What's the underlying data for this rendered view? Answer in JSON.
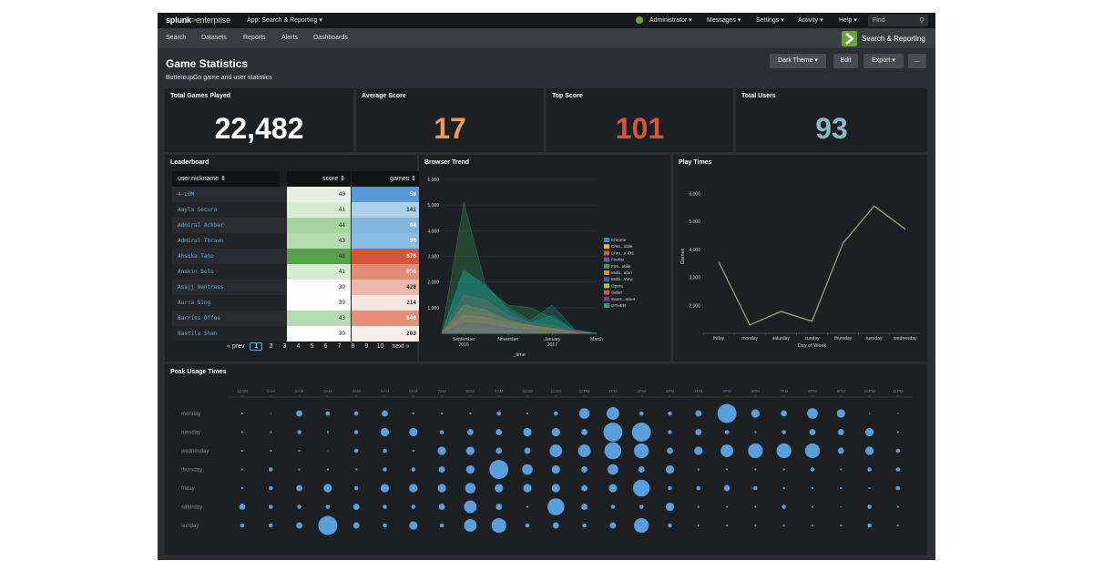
{
  "topbar": {
    "logo_main": "splunk",
    "logo_sep": ">",
    "logo_sub": "enterprise",
    "app_menu": "App: Search & Reporting ▾",
    "menus": [
      "Administrator ▾",
      "Messages ▾",
      "Settings ▾",
      "Activity ▾",
      "Help ▾"
    ],
    "find_placeholder": "Find",
    "search_icon": "magnifier-icon",
    "status_color": "#65a637"
  },
  "navbar": {
    "items": [
      "Search",
      "Datasets",
      "Reports",
      "Alerts",
      "Dashboards"
    ],
    "app_title": "Search & Reporting",
    "app_icon": "chevron-right-icon"
  },
  "dashboard": {
    "title": "Game Statistics",
    "subtitle": "ButtercupGo game and user statistics",
    "buttons": {
      "theme": "Dark Theme ▾",
      "edit": "Edit",
      "export": "Export ▾",
      "more": "..."
    }
  },
  "kpis": [
    {
      "title": "Total Games Played",
      "value": "22,482",
      "color": "#ffffff"
    },
    {
      "title": "Average Score",
      "value": "17",
      "color": "#ec9960"
    },
    {
      "title": "Top Score",
      "value": "101",
      "color": "#d6563c"
    },
    {
      "title": "Total Users",
      "value": "93",
      "color": "#8ab8c8"
    }
  ],
  "leaderboard": {
    "title": "Leaderboard",
    "columns": [
      "user.nickname ⇕",
      "score ⇕",
      "games ⇕"
    ],
    "rows": [
      {
        "name": "4-LOM",
        "score": "40",
        "games": "50",
        "score_bg": "#e6f1e3",
        "games_bg": "#5a96d3"
      },
      {
        "name": "Aayla Secura",
        "score": "41",
        "games": "141",
        "score_bg": "#d6ebd2",
        "games_bg": "#aed0ec"
      },
      {
        "name": "Admiral Ackbar",
        "score": "44",
        "games": "84",
        "score_bg": "#a6d3a0",
        "games_bg": "#82b6e1"
      },
      {
        "name": "Admiral Thrawn",
        "score": "43",
        "games": "90",
        "score_bg": "#b6dbb0",
        "games_bg": "#8abbe3"
      },
      {
        "name": "Ahsoka Tano",
        "score": "48",
        "games": "878",
        "score_bg": "#55a14e",
        "games_bg": "#d6563c"
      },
      {
        "name": "Anakin Solo",
        "score": "41",
        "games": "656",
        "score_bg": "#d6ebd2",
        "games_bg": "#e08d78"
      },
      {
        "name": "Asajj Ventress",
        "score": "39",
        "games": "420",
        "score_bg": "#ffffff",
        "games_bg": "#ebb8aa"
      },
      {
        "name": "Aurra Sing",
        "score": "39",
        "games": "214",
        "score_bg": "#ffffff",
        "games_bg": "#f8e8e4"
      },
      {
        "name": "Barriss Offee",
        "score": "43",
        "games": "640",
        "score_bg": "#b6dbb0",
        "games_bg": "#e2907b"
      },
      {
        "name": "Bastila Shan",
        "score": "39",
        "games": "203",
        "score_bg": "#ffffff",
        "games_bg": "#faeeea"
      }
    ],
    "pager": {
      "prev": "« prev",
      "pages": [
        "1",
        "2",
        "3",
        "4",
        "5",
        "6",
        "7",
        "8",
        "9",
        "10"
      ],
      "current": "1",
      "next": "next »"
    }
  },
  "browser_trend": {
    "title": "Browser Trend",
    "chart_data": {
      "type": "area",
      "xlabel": "_time",
      "ylabel": "",
      "ylim": [
        0,
        6000
      ],
      "yticks": [
        "6,000",
        "5,000",
        "4,000",
        "3,000",
        "2,000",
        "1,000"
      ],
      "xticks": [
        {
          "label": "September\n2016",
          "x": 1
        },
        {
          "label": "November",
          "x": 3
        },
        {
          "label": "January\n2017",
          "x": 5
        },
        {
          "label": "March",
          "x": 7
        }
      ],
      "x": [
        0,
        1,
        2,
        3,
        4,
        5,
        6,
        7
      ],
      "series": [
        {
          "name": "Chrome",
          "color": "#1e93c6",
          "values": [
            0,
            2400,
            1900,
            900,
            400,
            700,
            100,
            0
          ]
        },
        {
          "name": "Chro...obile",
          "color": "#f2b827",
          "values": [
            0,
            1100,
            900,
            500,
            300,
            200,
            50,
            0
          ]
        },
        {
          "name": "Chro...e iOS",
          "color": "#d6563c",
          "values": [
            0,
            900,
            800,
            450,
            250,
            200,
            50,
            0
          ]
        },
        {
          "name": "Firefox",
          "color": "#6a5c9e",
          "values": [
            0,
            600,
            500,
            300,
            200,
            100,
            30,
            0
          ]
        },
        {
          "name": "Fire...obile",
          "color": "#31a35f",
          "values": [
            0,
            5100,
            1800,
            1100,
            1000,
            600,
            100,
            0
          ]
        },
        {
          "name": "Mobi...afari",
          "color": "#ed8440",
          "values": [
            0,
            700,
            600,
            400,
            300,
            150,
            50,
            0
          ]
        },
        {
          "name": "Mobi...View",
          "color": "#3863a0",
          "values": [
            0,
            300,
            250,
            200,
            100,
            80,
            20,
            0
          ]
        },
        {
          "name": "Opera",
          "color": "#a2cc3e",
          "values": [
            0,
            200,
            150,
            100,
            80,
            50,
            10,
            0
          ]
        },
        {
          "name": "Safari",
          "color": "#cc5068",
          "values": [
            0,
            1500,
            1300,
            700,
            400,
            300,
            60,
            0
          ]
        },
        {
          "name": "Sams...ernet",
          "color": "#73427f",
          "values": [
            0,
            400,
            350,
            200,
            120,
            80,
            20,
            0
          ]
        },
        {
          "name": "OTHER",
          "color": "#11a88b",
          "values": [
            0,
            2500,
            1800,
            1000,
            500,
            1100,
            150,
            0
          ]
        }
      ]
    }
  },
  "play_times": {
    "title": "Play Times",
    "chart_data": {
      "type": "line",
      "xlabel": "Day of Week",
      "ylabel": "Games",
      "ylim": [
        1000,
        6500
      ],
      "yticks": [
        "6,000",
        "5,000",
        "4,000",
        "3,000",
        "2,000"
      ],
      "categories": [
        "friday",
        "monday",
        "saturday",
        "sunday",
        "thursday",
        "tuesday",
        "wednesday"
      ],
      "values": [
        3550,
        1300,
        1780,
        1430,
        4230,
        5550,
        4720
      ],
      "color": "#9aa36f"
    }
  },
  "peak_usage": {
    "title": "Peak Usage Times",
    "chart_data": {
      "type": "scatter",
      "hours": [
        "12AM",
        "1AM",
        "2AM",
        "3AM",
        "4AM",
        "5AM",
        "6AM",
        "7AM",
        "8AM",
        "9AM",
        "10AM",
        "11AM",
        "12PM",
        "1PM",
        "2PM",
        "3PM",
        "4PM",
        "5PM",
        "6PM",
        "7PM",
        "8PM",
        "9PM",
        "10PM",
        "11PM"
      ],
      "days": [
        "monday",
        "tuesday",
        "wednesday",
        "thursday",
        "friday",
        "saturday",
        "sunday"
      ],
      "sizes": [
        [
          1,
          0,
          3,
          2,
          2,
          3,
          1,
          1,
          1,
          2,
          1,
          2,
          5,
          6,
          2,
          2,
          3,
          9,
          4,
          3,
          5,
          4,
          0,
          0
        ],
        [
          1,
          1,
          2,
          1,
          2,
          4,
          4,
          2,
          3,
          3,
          4,
          4,
          3,
          9,
          9,
          2,
          3,
          2,
          1,
          2,
          3,
          3,
          4,
          1
        ],
        [
          1,
          1,
          1,
          0,
          2,
          2,
          1,
          4,
          4,
          3,
          3,
          6,
          6,
          8,
          7,
          3,
          4,
          6,
          7,
          7,
          7,
          3,
          4,
          2
        ],
        [
          1,
          2,
          1,
          1,
          1,
          2,
          2,
          3,
          4,
          9,
          5,
          4,
          3,
          5,
          3,
          4,
          1,
          1,
          1,
          1,
          2,
          1,
          2,
          2
        ],
        [
          1,
          2,
          3,
          4,
          2,
          4,
          4,
          4,
          5,
          4,
          4,
          4,
          3,
          4,
          8,
          2,
          2,
          3,
          2,
          1,
          1,
          1,
          1,
          2
        ],
        [
          3,
          2,
          2,
          2,
          3,
          2,
          2,
          3,
          6,
          3,
          1,
          8,
          3,
          2,
          2,
          4,
          1,
          1,
          1,
          2,
          1,
          0,
          2,
          1
        ],
        [
          2,
          2,
          3,
          9,
          3,
          2,
          4,
          2,
          6,
          7,
          2,
          3,
          2,
          3,
          7,
          2,
          1,
          1,
          1,
          1,
          1,
          1,
          2,
          1
        ]
      ]
    }
  }
}
